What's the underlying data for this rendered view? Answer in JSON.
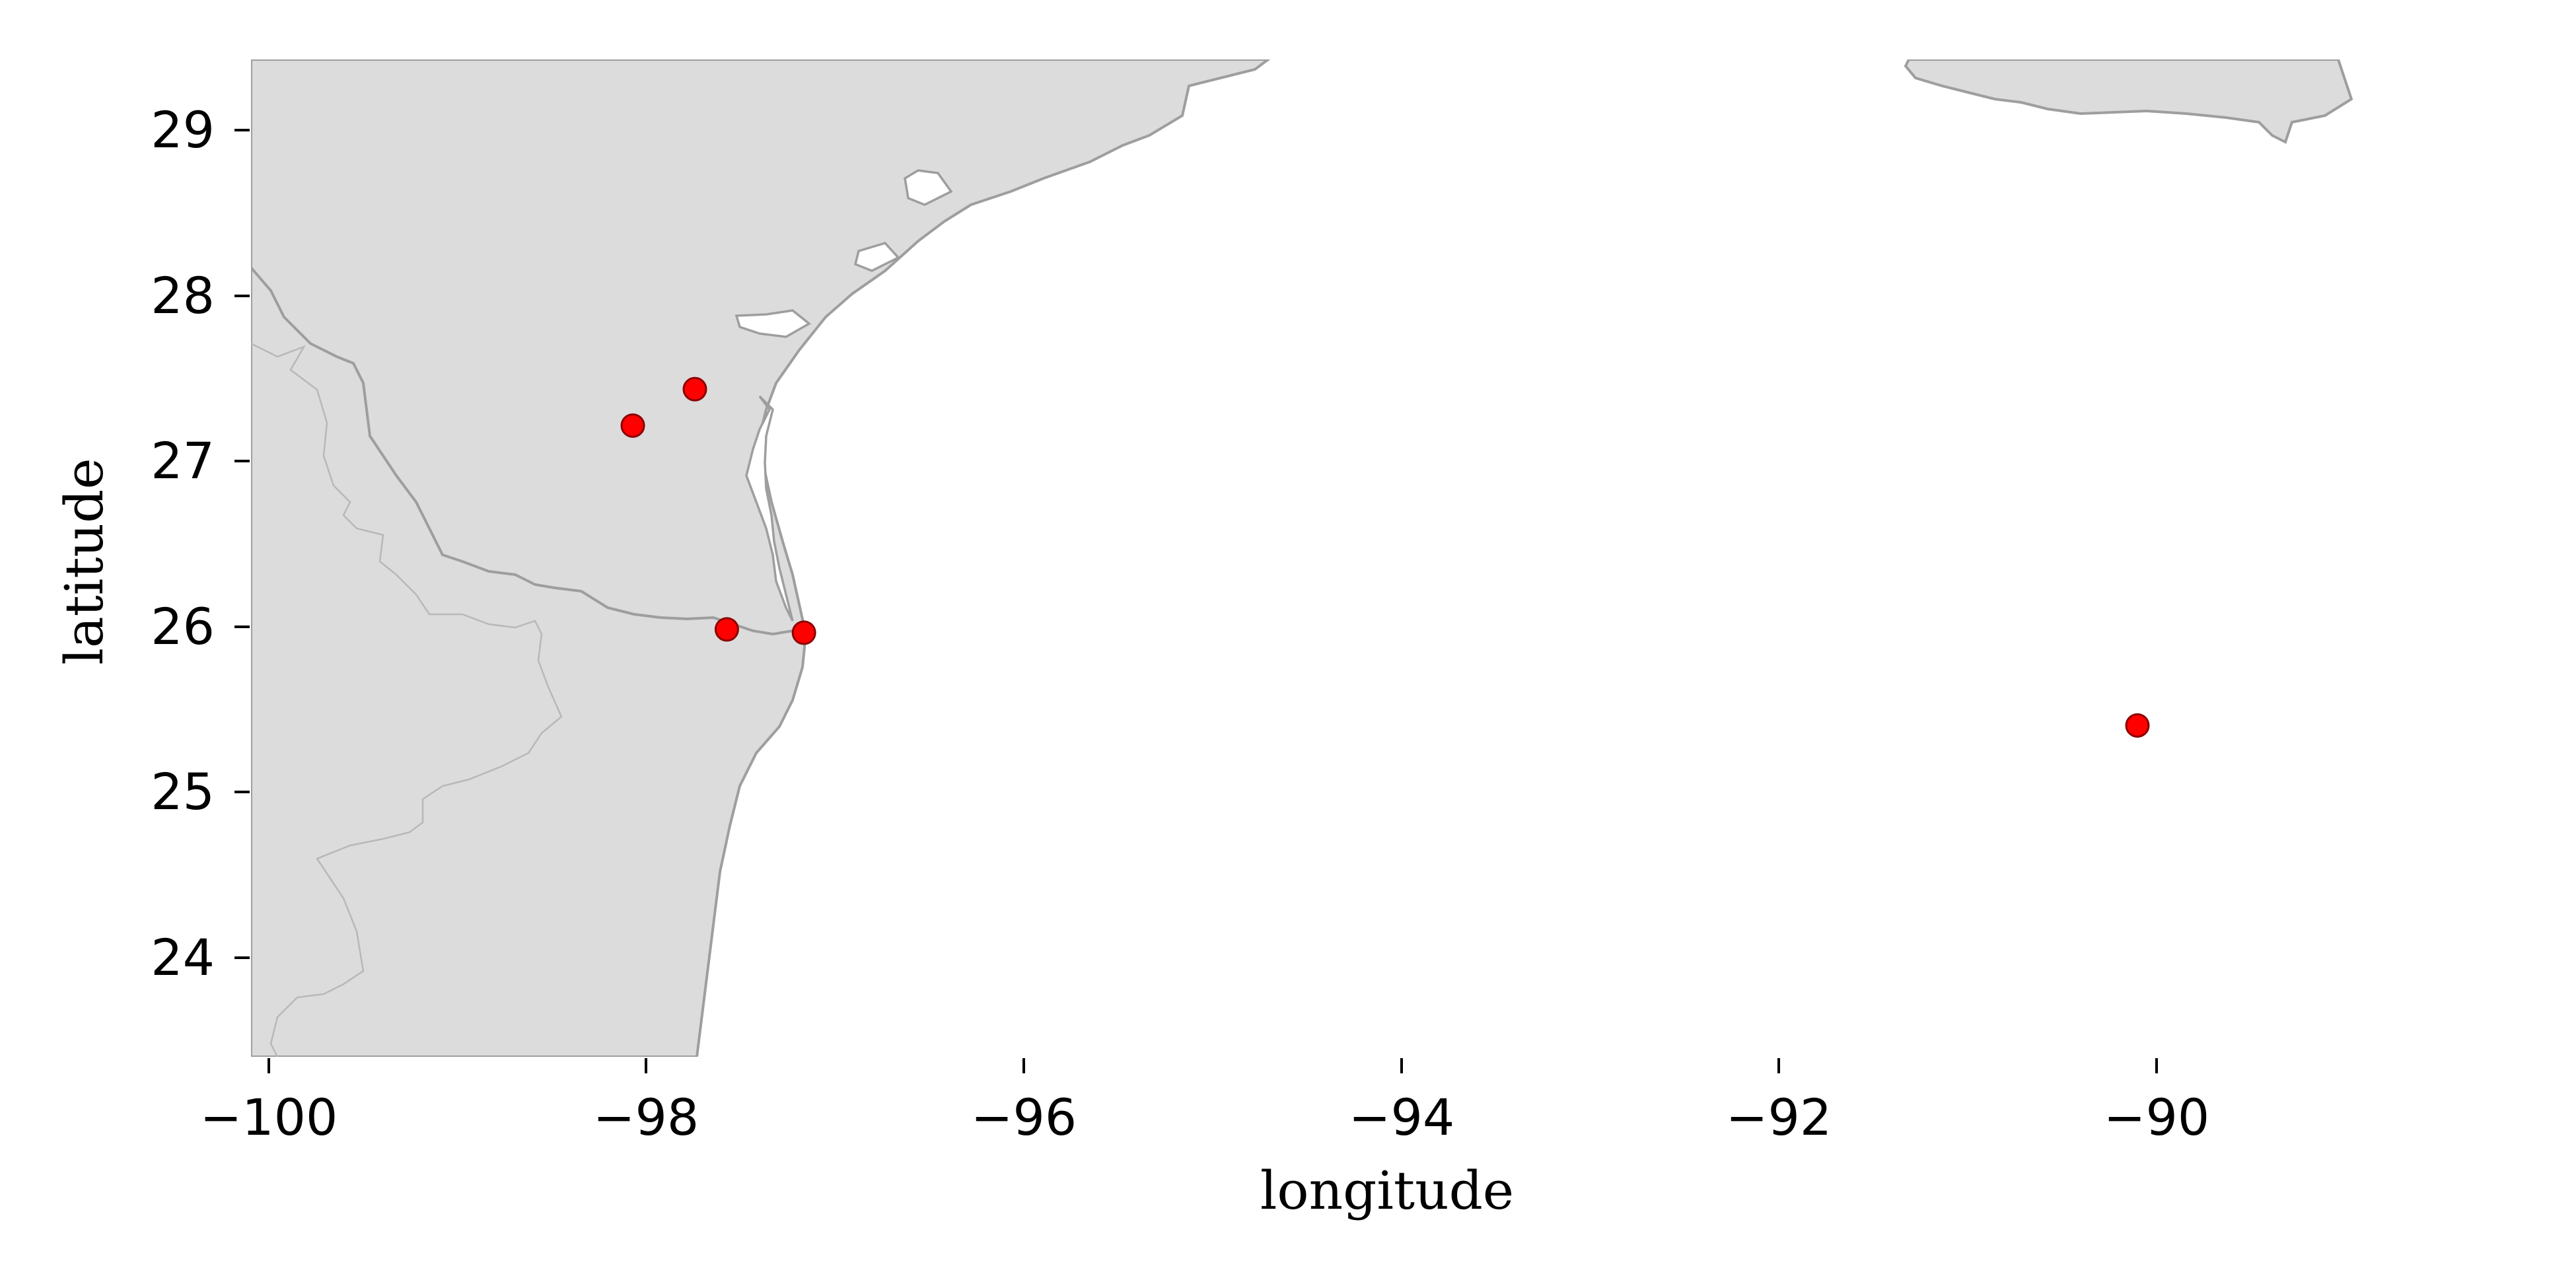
{
  "chart_data": {
    "type": "scatter",
    "xlabel": "longitude",
    "ylabel": "latitude",
    "xlim": [
      -100.1,
      -88.3
    ],
    "ylim": [
      23.4,
      29.42
    ],
    "xticks": [
      -100,
      -98,
      -96,
      -94,
      -92,
      -90
    ],
    "yticks": [
      24,
      25,
      26,
      27,
      28,
      29
    ],
    "xtick_labels": [
      "−100",
      "−98",
      "−96",
      "−94",
      "−92",
      "−90"
    ],
    "ytick_labels": [
      "24",
      "25",
      "26",
      "27",
      "28",
      "29"
    ],
    "grid": false,
    "marker_color": "#ff0000",
    "marker_edge_color": "#8b0000",
    "land_color": "#dcdcdc",
    "coast_color": "#9e9e9e",
    "points": [
      {
        "x": -97.74,
        "y": 27.43
      },
      {
        "x": -98.07,
        "y": 27.21
      },
      {
        "x": -97.57,
        "y": 25.98
      },
      {
        "x": -97.16,
        "y": 25.96
      },
      {
        "x": -90.07,
        "y": 25.4
      }
    ]
  }
}
